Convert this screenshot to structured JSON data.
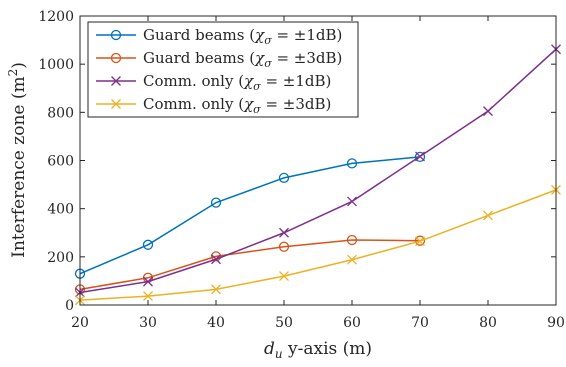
{
  "chart_data": {
    "type": "line",
    "title": "",
    "xlabel_var": "d",
    "xlabel_sub": "u",
    "xlabel_rest": " y-axis (m)",
    "ylabel_main": "Interference zone (m",
    "ylabel_sup": "2",
    "ylabel_close": ")",
    "xlim": [
      20,
      90
    ],
    "ylim": [
      0,
      1200
    ],
    "xticks": [
      "20",
      "30",
      "40",
      "50",
      "60",
      "70",
      "80",
      "90"
    ],
    "yticks": [
      "0",
      "200",
      "400",
      "600",
      "800",
      "1000",
      "1200"
    ],
    "grid": false,
    "legend_position": "top-left",
    "series": [
      {
        "label_main": "Guard beams (",
        "label_sym": "χ",
        "label_sub": "σ",
        "label_tail": " = ±1dB)",
        "color": "#0072BD",
        "marker": "circle",
        "x": [
          20,
          30,
          40,
          50,
          60,
          70
        ],
        "y": [
          130,
          250,
          425,
          528,
          588,
          615
        ]
      },
      {
        "label_main": "Guard beams (",
        "label_sym": "χ",
        "label_sub": "σ",
        "label_tail": " = ±3dB)",
        "color": "#D95319",
        "marker": "circle",
        "x": [
          20,
          30,
          40,
          50,
          60,
          70
        ],
        "y": [
          65,
          113,
          202,
          242,
          270,
          267
        ]
      },
      {
        "label_main": "Comm. only (",
        "label_sym": "χ",
        "label_sub": "σ",
        "label_tail": " = ±1dB)",
        "color": "#7E2F8E",
        "marker": "x",
        "x": [
          20,
          30,
          40,
          50,
          60,
          70,
          80,
          90
        ],
        "y": [
          52,
          97,
          190,
          300,
          430,
          617,
          805,
          1062
        ]
      },
      {
        "label_main": "Comm. only (",
        "label_sym": "χ",
        "label_sub": "σ",
        "label_tail": " = ±3dB)",
        "color": "#EDB120",
        "marker": "x",
        "x": [
          20,
          30,
          40,
          50,
          60,
          70,
          80,
          90
        ],
        "y": [
          20,
          37,
          65,
          120,
          188,
          265,
          372,
          478
        ]
      }
    ]
  }
}
